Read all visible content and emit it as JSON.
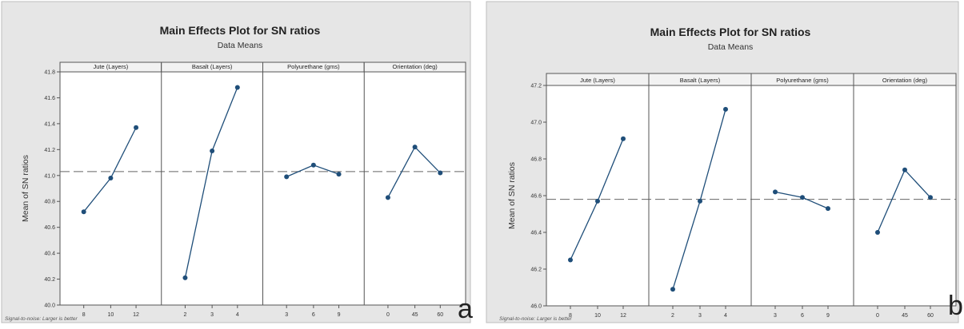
{
  "figure_labels": [
    "a",
    "b"
  ],
  "chart_data": [
    {
      "type": "line",
      "title": "Main Effects Plot for SN ratios",
      "subtitle": "Data Means",
      "ylabel": "Mean of SN ratios",
      "footnote": "Signal-to-noise: Larger is better",
      "ylim": [
        40.0,
        41.8
      ],
      "yticks": [
        40.0,
        40.2,
        40.4,
        40.6,
        40.8,
        41.0,
        41.2,
        41.4,
        41.6,
        41.8
      ],
      "ytick_labels": [
        "40.0",
        "40.2",
        "40.4",
        "40.6",
        "40.8",
        "41.0",
        "41.2",
        "41.4",
        "41.6",
        "41.8"
      ],
      "reference_line": 41.03,
      "grid": false,
      "panels": [
        {
          "factor": "Jute (Layers)",
          "levels": [
            "8",
            "10",
            "12"
          ],
          "values": [
            40.72,
            40.98,
            41.37
          ]
        },
        {
          "factor": "Basalt (Layers)",
          "levels": [
            "2",
            "3",
            "4"
          ],
          "values": [
            40.21,
            41.19,
            41.68
          ]
        },
        {
          "factor": "Polyurethane (gms)",
          "levels": [
            "3",
            "6",
            "9"
          ],
          "values": [
            40.99,
            41.08,
            41.01
          ]
        },
        {
          "factor": "Orientation (deg)",
          "levels": [
            "0",
            "45",
            "60"
          ],
          "values": [
            40.83,
            41.22,
            41.02
          ]
        }
      ]
    },
    {
      "type": "line",
      "title": "Main Effects Plot for SN ratios",
      "subtitle": "Data Means",
      "ylabel": "Mean of SN ratios",
      "footnote": "Signal-to-noise: Larger is better",
      "ylim": [
        46.0,
        47.2
      ],
      "yticks": [
        46.0,
        46.2,
        46.4,
        46.6,
        46.8,
        47.0,
        47.2
      ],
      "ytick_labels": [
        "46.0",
        "46.2",
        "46.4",
        "46.6",
        "46.8",
        "47.0",
        "47.2"
      ],
      "reference_line": 46.58,
      "grid": false,
      "panels": [
        {
          "factor": "Jute (Layers)",
          "levels": [
            "8",
            "10",
            "12"
          ],
          "values": [
            46.25,
            46.57,
            46.91
          ]
        },
        {
          "factor": "Basalt (Layers)",
          "levels": [
            "2",
            "3",
            "4"
          ],
          "values": [
            46.09,
            46.57,
            47.07
          ]
        },
        {
          "factor": "Polyurethane (gms)",
          "levels": [
            "3",
            "6",
            "9"
          ],
          "values": [
            46.62,
            46.59,
            46.53
          ]
        },
        {
          "factor": "Orientation (deg)",
          "levels": [
            "0",
            "45",
            "60"
          ],
          "values": [
            46.4,
            46.74,
            46.59
          ]
        }
      ]
    }
  ]
}
